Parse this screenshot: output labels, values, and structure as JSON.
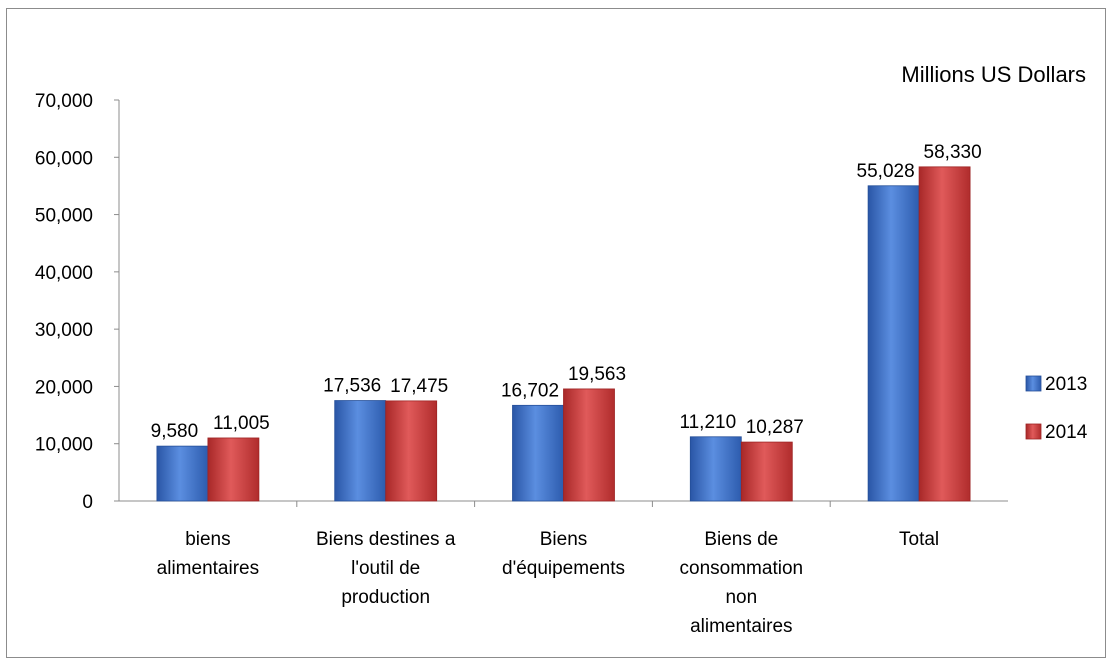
{
  "chart_data": {
    "type": "bar",
    "title": "",
    "unit_label": "Millions US Dollars",
    "xlabel": "",
    "ylabel": "",
    "categories": [
      [
        "biens",
        "alimentaires"
      ],
      [
        "Biens destines a",
        "l'outil de",
        "production"
      ],
      [
        "Biens",
        "d'équipements"
      ],
      [
        "Biens de",
        "consommation",
        "non",
        "alimentaires"
      ],
      [
        "Total"
      ]
    ],
    "series": [
      {
        "name": "2013",
        "color": "#3c6fc4",
        "values": [
          9580,
          17536,
          16702,
          11210,
          55028
        ],
        "labels": [
          "9,580",
          "17,536",
          "16,702",
          "11,210",
          "55,028"
        ]
      },
      {
        "name": "2014",
        "color": "#c93a3a",
        "values": [
          11005,
          17475,
          19563,
          10287,
          58330
        ],
        "labels": [
          "11,005",
          "17,475",
          "19,563",
          "10,287",
          "58,330"
        ]
      }
    ],
    "ylim": [
      0,
      70000
    ],
    "yticks": [
      0,
      10000,
      20000,
      30000,
      40000,
      50000,
      60000,
      70000
    ],
    "ytick_labels": [
      "0",
      "10,000",
      "20,000",
      "30,000",
      "40,000",
      "50,000",
      "60,000",
      "70,000"
    ],
    "grid": false,
    "legend": "right"
  }
}
